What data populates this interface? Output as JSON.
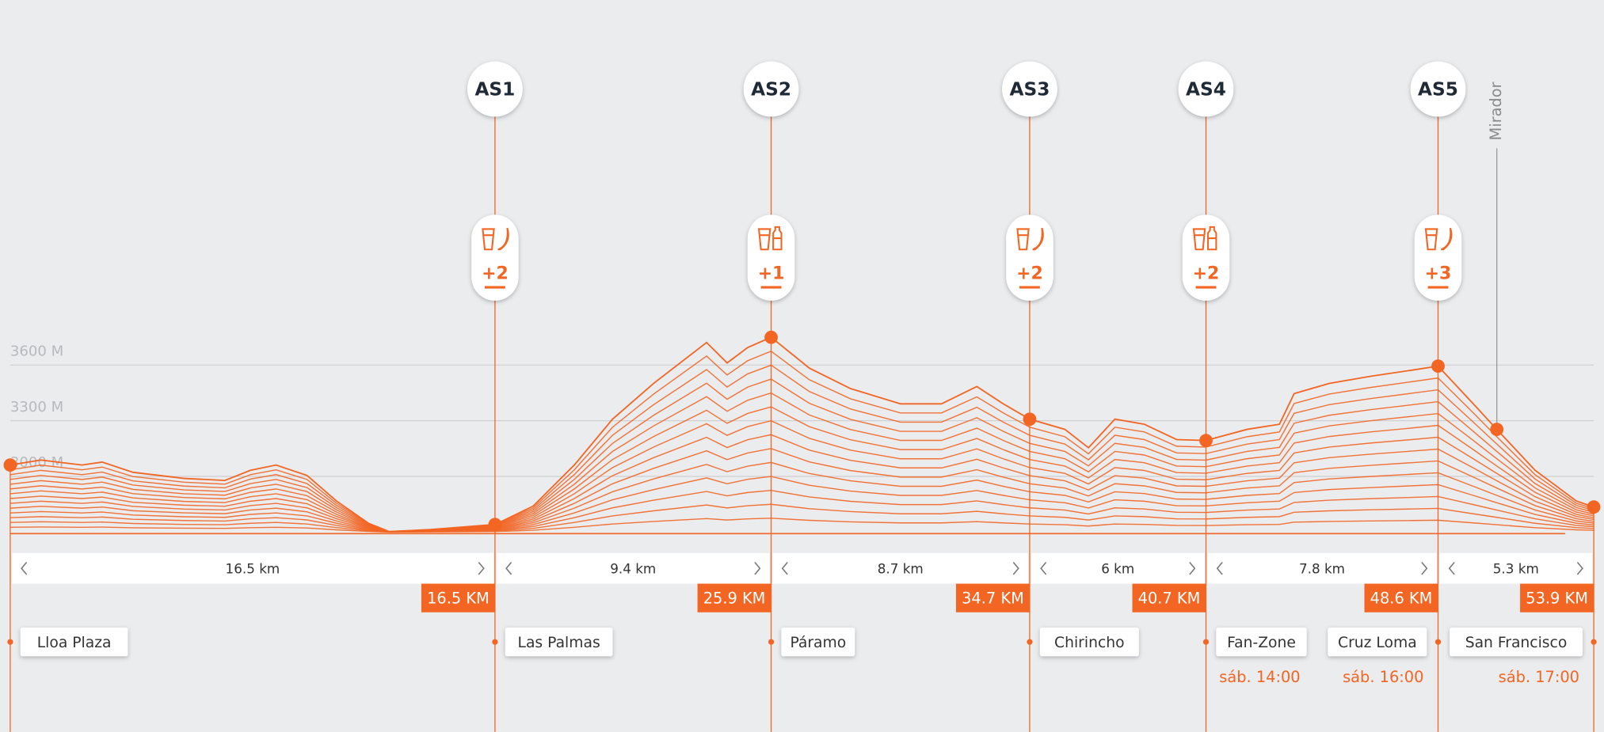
{
  "axis": {
    "xlim": [
      0,
      53.9
    ],
    "ylim": [
      2700,
      3900
    ],
    "yticks": [
      {
        "value": 3600,
        "label": "3600 M"
      },
      {
        "value": 3300,
        "label": "3300 M"
      },
      {
        "value": 3000,
        "label": "3000 M"
      }
    ]
  },
  "profile": {
    "color": "#f26522",
    "km": [
      0,
      1.04,
      2.44,
      3.13,
      4.18,
      5.92,
      7.31,
      8.18,
      9.05,
      10.1,
      11.1,
      12.2,
      12.9,
      14.3,
      16.5,
      17.8,
      19.2,
      20.5,
      21.9,
      23.7,
      24.4,
      25.1,
      25.9,
      27.2,
      28.6,
      30.3,
      31.7,
      32.9,
      33.8,
      34.7,
      35.9,
      36.7,
      37.6,
      38.6,
      39.7,
      40.7,
      42.1,
      43.2,
      43.7,
      44.9,
      46.3,
      47.7,
      48.6,
      49.8,
      50.6,
      51.9,
      53.3,
      53.9
    ],
    "elevation": [
      3061,
      3088,
      3061,
      3077,
      3022,
      2989,
      2978,
      3033,
      3061,
      3005,
      2868,
      2747,
      2703,
      2714,
      2741,
      2840,
      3061,
      3308,
      3501,
      3721,
      3611,
      3694,
      3749,
      3583,
      3473,
      3391,
      3391,
      3484,
      3391,
      3308,
      3253,
      3154,
      3308,
      3281,
      3198,
      3193,
      3253,
      3281,
      3446,
      3501,
      3539,
      3572,
      3594,
      3391,
      3253,
      3033,
      2868,
      2835
    ]
  },
  "checkpoints": [
    {
      "km": 16.5,
      "label": "16.5 KM"
    },
    {
      "km": 25.9,
      "label": "25.9 KM"
    },
    {
      "km": 34.7,
      "label": "34.7 KM"
    },
    {
      "km": 40.7,
      "label": "40.7 KM"
    },
    {
      "km": 48.6,
      "label": "48.6 KM"
    },
    {
      "km": 53.9,
      "label": "53.9 KM"
    }
  ],
  "segments": [
    "16.5 km",
    "9.4 km",
    "8.7 km",
    "6 km",
    "7.8 km",
    "5.3 km"
  ],
  "stations": [
    {
      "name": "AS1",
      "icon": "banana",
      "count": "+2"
    },
    {
      "name": "AS2",
      "icon": "bottle",
      "count": "+1"
    },
    {
      "name": "AS3",
      "icon": "banana",
      "count": "+2"
    },
    {
      "name": "AS4",
      "icon": "bottle",
      "count": "+2"
    },
    {
      "name": "AS5",
      "icon": "banana",
      "count": "+3"
    }
  ],
  "mirador": {
    "label": "Mirador",
    "km": 50.6
  },
  "places": [
    {
      "name": "Lloa Plaza"
    },
    {
      "name": "Las Palmas"
    },
    {
      "name": "Páramo"
    },
    {
      "name": "Chirincho"
    },
    {
      "name": "Fan-Zone",
      "time": "sáb. 14:00"
    },
    {
      "name": "Cruz Loma",
      "time": "sáb. 16:00"
    },
    {
      "name": "San Francisco",
      "time": "sáb. 17:00"
    }
  ]
}
